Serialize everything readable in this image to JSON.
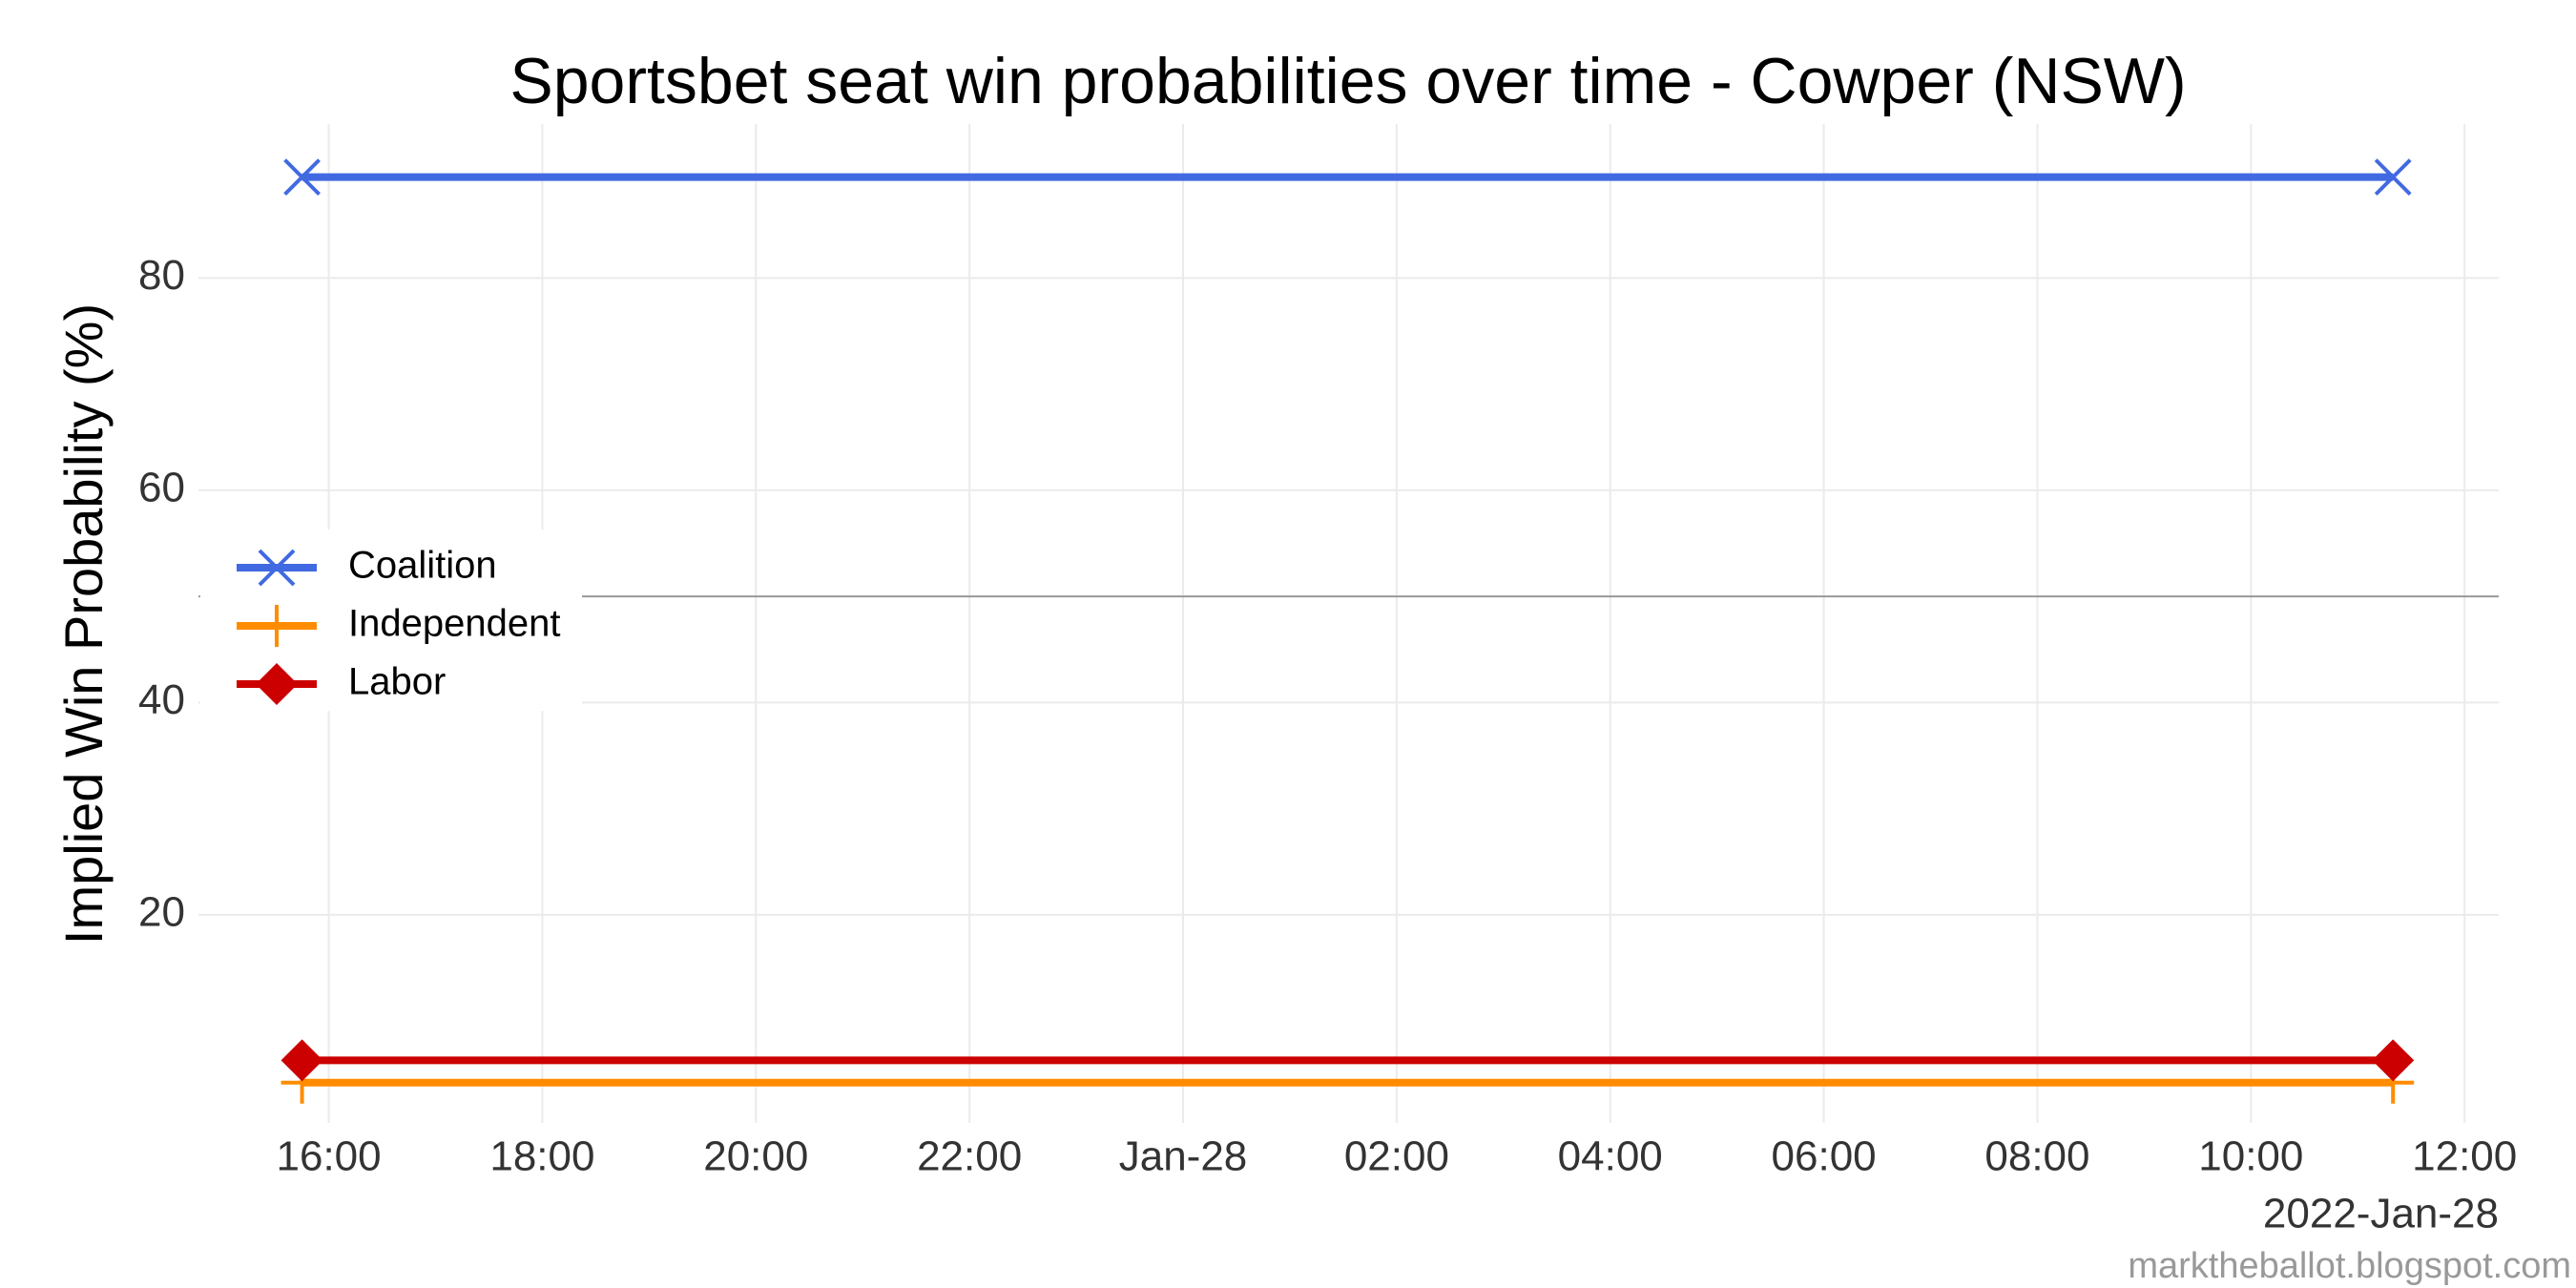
{
  "chart_data": {
    "type": "line",
    "title": "Sportsbet seat win probabilities over time - Cowper (NSW)",
    "y_label": "Implied Win Probability (%)",
    "x_caption": "2022-Jan-28",
    "source": "marktheballot.blogspot.com",
    "x": [
      15.75,
      35.33
    ],
    "series": [
      {
        "name": "Coalition",
        "color": "#4169e1",
        "marker": "x",
        "values": [
          89.5,
          89.5
        ]
      },
      {
        "name": "Independent",
        "color": "#ff8c00",
        "marker": "plus",
        "values": [
          4.2,
          4.2
        ]
      },
      {
        "name": "Labor",
        "color": "#cc0000",
        "marker": "diamond",
        "values": [
          6.3,
          6.3
        ]
      }
    ],
    "xlim": [
      14.78,
      36.32
    ],
    "xticks": [
      {
        "value": 16,
        "label": "16:00"
      },
      {
        "value": 18,
        "label": "18:00"
      },
      {
        "value": 20,
        "label": "20:00"
      },
      {
        "value": 22,
        "label": "22:00"
      },
      {
        "value": 24,
        "label": "Jan-28"
      },
      {
        "value": 26,
        "label": "02:00"
      },
      {
        "value": 28,
        "label": "04:00"
      },
      {
        "value": 30,
        "label": "06:00"
      },
      {
        "value": 32,
        "label": "08:00"
      },
      {
        "value": 34,
        "label": "10:00"
      },
      {
        "value": 36,
        "label": "12:00"
      }
    ],
    "ylim": [
      0.4,
      94.5
    ],
    "yticks": [
      20,
      40,
      60,
      80
    ],
    "hline": 50,
    "grid": true,
    "legend": "left"
  }
}
